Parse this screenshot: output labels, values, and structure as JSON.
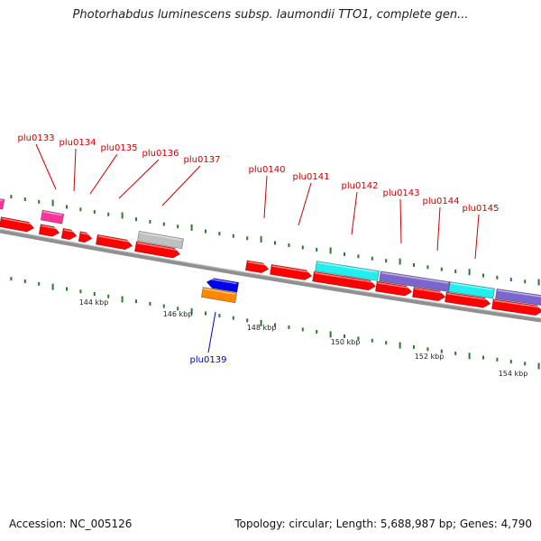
{
  "title": "Photorhabdus luminescens subsp. laumondii TTO1, complete gen...",
  "footer": {
    "accession": "Accession: NC_005126",
    "summary": "Topology: circular; Length: 5,688,987 bp; Genes: 4,790"
  },
  "colors": {
    "backbone": "#8a8a8a",
    "forward_cds": "#ff0000",
    "reverse_cds": "#0000ee",
    "rna": "#ff8800",
    "pink": "#ff3399",
    "grey": "#bfbfbf",
    "cyan": "#22eeee",
    "purple": "#7a66cc",
    "tick": "#2a7a2a",
    "forward_label": "#cc0000",
    "reverse_label": "#0000cc"
  },
  "scale_labels": [
    "144 kbp",
    "146 kbp",
    "148 kbp",
    "150 kbp",
    "152 kbp",
    "154 kbp"
  ],
  "gene_labels": {
    "forward": [
      "plu0133",
      "plu0134",
      "plu0135",
      "plu0136",
      "plu0137",
      "plu0140",
      "plu0141",
      "plu0142",
      "plu0143",
      "plu0144",
      "plu0145"
    ],
    "reverse": [
      "plu0139"
    ]
  }
}
